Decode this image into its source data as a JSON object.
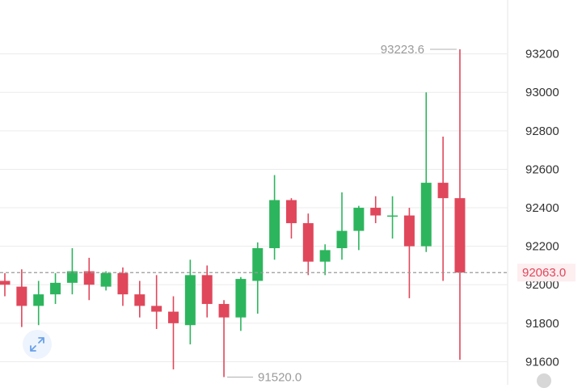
{
  "chart_data": {
    "type": "candlestick",
    "ylim": [
      91480,
      93480
    ],
    "y_ticks": [
      91600,
      91800,
      92000,
      92200,
      92400,
      92600,
      92800,
      93000,
      93200
    ],
    "y_tick_labels": [
      "91600",
      "91800",
      "92000",
      "92200",
      "92400",
      "92600",
      "92800",
      "93000",
      "93200"
    ],
    "grid": true,
    "up_color": "#2db55d",
    "down_color": "#e0475b",
    "current_price": 92063.0,
    "current_price_label": "92063.0",
    "high_annotation": "93223.6",
    "high_value": 93223.6,
    "low_annotation": "91520.0",
    "low_value": 91520.0,
    "candles": [
      {
        "open": 92020,
        "close": 92000,
        "high": 92060,
        "low": 91940
      },
      {
        "open": 91990,
        "close": 91890,
        "high": 92080,
        "low": 91780
      },
      {
        "open": 91890,
        "close": 91950,
        "high": 92020,
        "low": 91790
      },
      {
        "open": 91950,
        "close": 92010,
        "high": 92060,
        "low": 91900
      },
      {
        "open": 92010,
        "close": 92070,
        "high": 92190,
        "low": 91950
      },
      {
        "open": 92070,
        "close": 92000,
        "high": 92140,
        "low": 91920
      },
      {
        "open": 91990,
        "close": 92060,
        "high": 92070,
        "low": 91970
      },
      {
        "open": 92060,
        "close": 91950,
        "high": 92090,
        "low": 91890
      },
      {
        "open": 91950,
        "close": 91890,
        "high": 92020,
        "low": 91830
      },
      {
        "open": 91890,
        "close": 91860,
        "high": 92050,
        "low": 91770
      },
      {
        "open": 91860,
        "close": 91800,
        "high": 91940,
        "low": 91560
      },
      {
        "open": 91790,
        "close": 92050,
        "high": 92130,
        "low": 91690
      },
      {
        "open": 92050,
        "close": 91900,
        "high": 92100,
        "low": 91830
      },
      {
        "open": 91900,
        "close": 91830,
        "high": 91920,
        "low": 91520
      },
      {
        "open": 91830,
        "close": 92030,
        "high": 92040,
        "low": 91760
      },
      {
        "open": 92020,
        "close": 92190,
        "high": 92220,
        "low": 91850
      },
      {
        "open": 92190,
        "close": 92440,
        "high": 92570,
        "low": 92130
      },
      {
        "open": 92440,
        "close": 92320,
        "high": 92450,
        "low": 92240
      },
      {
        "open": 92320,
        "close": 92120,
        "high": 92370,
        "low": 92050
      },
      {
        "open": 92120,
        "close": 92180,
        "high": 92210,
        "low": 92050
      },
      {
        "open": 92190,
        "close": 92280,
        "high": 92480,
        "low": 92130
      },
      {
        "open": 92280,
        "close": 92400,
        "high": 92410,
        "low": 92180
      },
      {
        "open": 92400,
        "close": 92360,
        "high": 92460,
        "low": 92320
      },
      {
        "open": 92360,
        "close": 92360,
        "high": 92460,
        "low": 92240
      },
      {
        "open": 92360,
        "close": 92200,
        "high": 92400,
        "low": 91930
      },
      {
        "open": 92200,
        "close": 92530,
        "high": 93000,
        "low": 92170
      },
      {
        "open": 92530,
        "close": 92450,
        "high": 92770,
        "low": 92020
      },
      {
        "open": 92450,
        "close": 92063,
        "high": 93223.6,
        "low": 91610
      }
    ]
  },
  "controls": {
    "expand_icon": "expand-arrows-icon"
  },
  "colors": {
    "price_line": "#9a9a9a",
    "price_label_bg": "#fdeef0",
    "grid": "#ececec"
  }
}
